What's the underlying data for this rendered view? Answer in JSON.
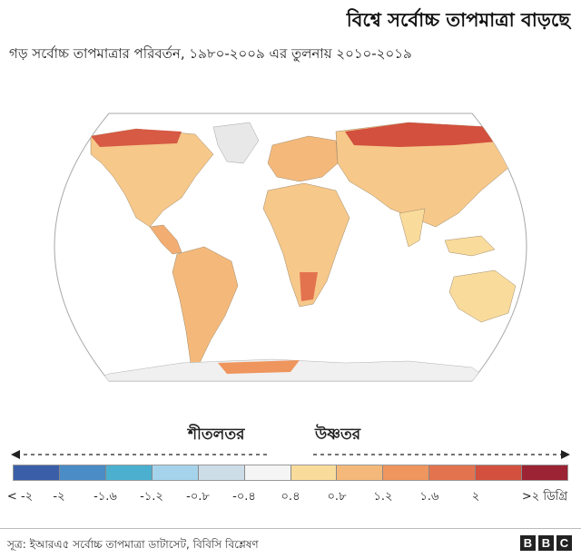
{
  "header": {
    "title": "বিশ্বে সর্বোচ্চ তাপমাত্রা বাড়ছে",
    "subtitle": "গড় সর্বোচ্চ তাপমাত্রার পরিবর্তন, ১৯৮০-২০০৯ এর তুলনায় ২০১০-২০১৯"
  },
  "map": {
    "projection": "robinson-like world map",
    "ocean_color": "#ffffff",
    "outline_color": "#aaaaaa"
  },
  "legend": {
    "cooler_label": "শীতলতর",
    "warmer_label": "উষ্ণতর",
    "swatches": [
      "#3a5fa8",
      "#4a8cc6",
      "#4bb0d0",
      "#a6d3ec",
      "#cddde8",
      "#f5f5f5",
      "#f9dc9c",
      "#f4b97a",
      "#ef955e",
      "#e3734f",
      "#d2503d",
      "#9b2333"
    ],
    "tick_labels": [
      "< -২",
      "-২",
      "-১.৬",
      "-১.২",
      "-০.৮",
      "-০.৪",
      "০.৪",
      "০.৮",
      "১.২",
      "১.৬",
      "২",
      ">২ ডিগ্রি"
    ]
  },
  "footer": {
    "source": "সূত্র: ইআরএ৫ সর্বোচ্চ তাপমাত্রা ডাটাসেট, বিবিসি বিশ্লেষণ",
    "logo_letters": [
      "B",
      "B",
      "C"
    ]
  }
}
